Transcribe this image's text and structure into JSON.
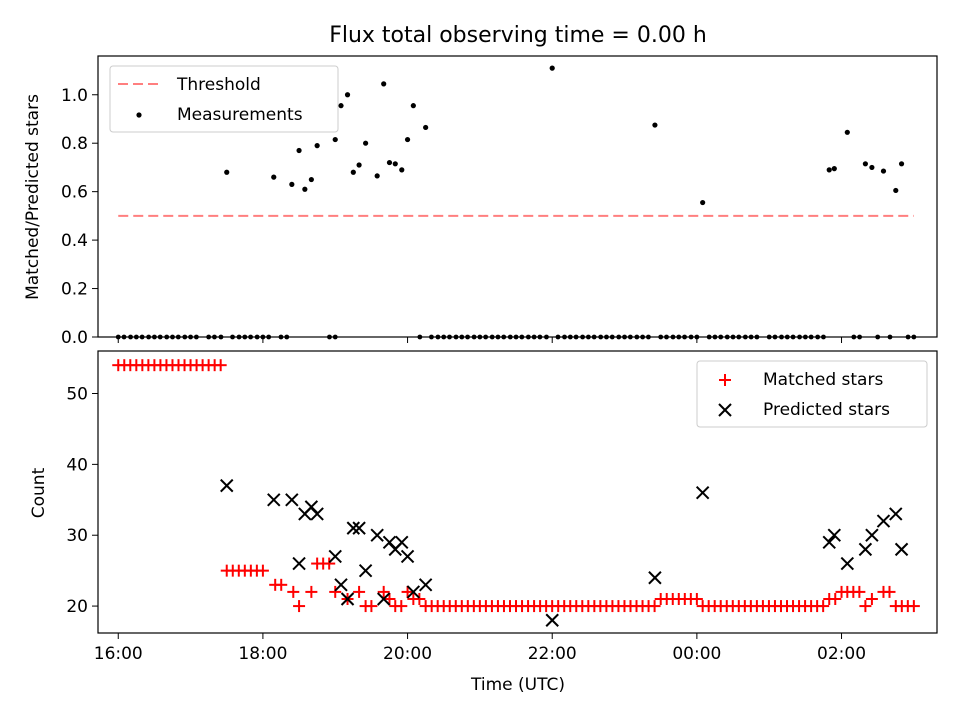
{
  "figure": {
    "title": "Flux total observing time = 0.00 h"
  },
  "chart_data": [
    {
      "type": "scatter",
      "panel": "top",
      "title": "Flux total observing time = 0.00 h",
      "xlabel": "",
      "ylabel": "Matched/Predicted stars",
      "xlim_hours": [
        15.72,
        27.32
      ],
      "ylim": [
        0,
        1.16
      ],
      "grid": false,
      "legend_position": "top-left",
      "x_ticks_hours": [
        16,
        18,
        20,
        22,
        24,
        26
      ],
      "x_tick_labels_shown": false,
      "y_ticks": [
        {
          "v": 0.0,
          "label": "0.0"
        },
        {
          "v": 0.2,
          "label": "0.2"
        },
        {
          "v": 0.4,
          "label": "0.4"
        },
        {
          "v": 0.6,
          "label": "0.6"
        },
        {
          "v": 0.8,
          "label": "0.8"
        },
        {
          "v": 1.0,
          "label": "1.0"
        }
      ],
      "threshold": {
        "name": "Threshold",
        "value": 0.5,
        "x_range_hours": [
          16.0,
          27.0
        ],
        "color": "#ff7f7f",
        "style": "dashed"
      },
      "measurements": {
        "name": "Measurements",
        "color": "#000000",
        "nonzero_points": [
          {
            "x": 17.5,
            "y": 0.68
          },
          {
            "x": 18.15,
            "y": 0.66
          },
          {
            "x": 18.4,
            "y": 0.63
          },
          {
            "x": 18.5,
            "y": 0.77
          },
          {
            "x": 18.58,
            "y": 0.61
          },
          {
            "x": 18.67,
            "y": 0.65
          },
          {
            "x": 18.75,
            "y": 0.79
          },
          {
            "x": 19.0,
            "y": 0.815
          },
          {
            "x": 19.08,
            "y": 0.955
          },
          {
            "x": 19.17,
            "y": 1.0
          },
          {
            "x": 19.25,
            "y": 0.68
          },
          {
            "x": 19.33,
            "y": 0.71
          },
          {
            "x": 19.42,
            "y": 0.8
          },
          {
            "x": 19.58,
            "y": 0.665
          },
          {
            "x": 19.67,
            "y": 1.045
          },
          {
            "x": 19.75,
            "y": 0.72
          },
          {
            "x": 19.83,
            "y": 0.715
          },
          {
            "x": 19.92,
            "y": 0.69
          },
          {
            "x": 20.0,
            "y": 0.815
          },
          {
            "x": 20.08,
            "y": 0.955
          },
          {
            "x": 20.25,
            "y": 0.865
          },
          {
            "x": 22.0,
            "y": 1.11
          },
          {
            "x": 23.42,
            "y": 0.875
          },
          {
            "x": 24.08,
            "y": 0.555
          },
          {
            "x": 25.83,
            "y": 0.69
          },
          {
            "x": 25.9,
            "y": 0.695
          },
          {
            "x": 26.08,
            "y": 0.845
          },
          {
            "x": 26.33,
            "y": 0.715
          },
          {
            "x": 26.42,
            "y": 0.7
          },
          {
            "x": 26.58,
            "y": 0.685
          },
          {
            "x": 26.75,
            "y": 0.605
          },
          {
            "x": 26.83,
            "y": 0.715
          }
        ],
        "zero_points_x": [
          16.0,
          16.08,
          16.17,
          16.25,
          16.33,
          16.42,
          16.5,
          16.58,
          16.67,
          16.75,
          16.83,
          16.92,
          17.0,
          17.08,
          17.25,
          17.33,
          17.42,
          17.58,
          17.67,
          17.75,
          17.83,
          17.92,
          18.0,
          18.08,
          18.25,
          18.33,
          18.92,
          19.0,
          20.17,
          20.33,
          20.42,
          20.5,
          20.58,
          20.67,
          20.75,
          20.83,
          20.92,
          21.0,
          21.08,
          21.17,
          21.25,
          21.33,
          21.42,
          21.5,
          21.58,
          21.67,
          21.75,
          21.83,
          21.92,
          22.08,
          22.17,
          22.25,
          22.33,
          22.42,
          22.5,
          22.58,
          22.67,
          22.75,
          22.83,
          22.92,
          23.0,
          23.08,
          23.17,
          23.25,
          23.33,
          23.5,
          23.58,
          23.67,
          23.75,
          23.83,
          23.92,
          24.0,
          24.17,
          24.25,
          24.33,
          24.42,
          24.5,
          24.58,
          24.67,
          24.75,
          24.83,
          25.0,
          25.08,
          25.17,
          25.25,
          25.33,
          25.42,
          25.5,
          25.58,
          25.67,
          25.75,
          26.17,
          26.25,
          26.5,
          26.67,
          26.92,
          27.0
        ]
      }
    },
    {
      "type": "scatter",
      "panel": "bottom",
      "title": "",
      "xlabel": "Time (UTC)",
      "ylabel": "Count",
      "xlim_hours": [
        15.72,
        27.32
      ],
      "ylim": [
        16.2,
        56.0
      ],
      "grid": false,
      "legend_position": "top-right",
      "x_ticks": [
        {
          "h": 16,
          "label": "16:00"
        },
        {
          "h": 18,
          "label": "18:00"
        },
        {
          "h": 20,
          "label": "20:00"
        },
        {
          "h": 22,
          "label": "22:00"
        },
        {
          "h": 24,
          "label": "00:00"
        },
        {
          "h": 26,
          "label": "02:00"
        }
      ],
      "y_ticks": [
        {
          "v": 20,
          "label": "20"
        },
        {
          "v": 30,
          "label": "30"
        },
        {
          "v": 40,
          "label": "40"
        },
        {
          "v": 50,
          "label": "50"
        }
      ],
      "series": [
        {
          "name": "Matched stars",
          "color": "#ff0000",
          "marker": "plus",
          "step_hours": 0.0833,
          "runs": [
            {
              "start": 16.0,
              "end": 17.42,
              "value": 54
            },
            {
              "start": 17.5,
              "end": 18.08,
              "value": 25
            },
            {
              "start": 18.17,
              "end": 18.33,
              "value": 23
            },
            {
              "start": 18.42,
              "end": 18.42,
              "value": 22
            },
            {
              "start": 18.5,
              "end": 18.58,
              "value": 20
            },
            {
              "start": 18.67,
              "end": 18.67,
              "value": 22
            },
            {
              "start": 18.75,
              "end": 18.92,
              "value": 26
            },
            {
              "start": 19.0,
              "end": 19.08,
              "value": 22
            },
            {
              "start": 19.17,
              "end": 19.25,
              "value": 21
            },
            {
              "start": 19.33,
              "end": 19.33,
              "value": 22
            },
            {
              "start": 19.42,
              "end": 19.42,
              "value": 20
            },
            {
              "start": 19.5,
              "end": 19.58,
              "value": 20
            },
            {
              "start": 19.67,
              "end": 19.67,
              "value": 22
            },
            {
              "start": 19.75,
              "end": 19.75,
              "value": 21
            },
            {
              "start": 19.83,
              "end": 19.92,
              "value": 20
            },
            {
              "start": 20.0,
              "end": 20.0,
              "value": 22
            },
            {
              "start": 20.08,
              "end": 20.17,
              "value": 21
            },
            {
              "start": 20.25,
              "end": 23.42,
              "value": 20
            },
            {
              "start": 23.5,
              "end": 24.0,
              "value": 21
            },
            {
              "start": 24.08,
              "end": 25.75,
              "value": 20
            },
            {
              "start": 25.83,
              "end": 25.92,
              "value": 21
            },
            {
              "start": 26.0,
              "end": 26.0,
              "value": 22
            },
            {
              "start": 26.08,
              "end": 26.25,
              "value": 22
            },
            {
              "start": 26.33,
              "end": 26.33,
              "value": 20
            },
            {
              "start": 26.42,
              "end": 26.5,
              "value": 21
            },
            {
              "start": 26.58,
              "end": 26.67,
              "value": 22
            },
            {
              "start": 26.75,
              "end": 27.0,
              "value": 20
            }
          ]
        },
        {
          "name": "Predicted stars",
          "color": "#000000",
          "marker": "x",
          "points": [
            {
              "x": 17.5,
              "y": 37
            },
            {
              "x": 18.15,
              "y": 35
            },
            {
              "x": 18.4,
              "y": 35
            },
            {
              "x": 18.5,
              "y": 26
            },
            {
              "x": 18.58,
              "y": 33
            },
            {
              "x": 18.67,
              "y": 34
            },
            {
              "x": 18.75,
              "y": 33
            },
            {
              "x": 19.0,
              "y": 27
            },
            {
              "x": 19.08,
              "y": 23
            },
            {
              "x": 19.17,
              "y": 21
            },
            {
              "x": 19.25,
              "y": 31
            },
            {
              "x": 19.33,
              "y": 31
            },
            {
              "x": 19.42,
              "y": 25
            },
            {
              "x": 19.58,
              "y": 30
            },
            {
              "x": 19.67,
              "y": 21
            },
            {
              "x": 19.75,
              "y": 29
            },
            {
              "x": 19.83,
              "y": 28
            },
            {
              "x": 19.92,
              "y": 29
            },
            {
              "x": 20.0,
              "y": 27
            },
            {
              "x": 20.08,
              "y": 22
            },
            {
              "x": 20.25,
              "y": 23
            },
            {
              "x": 22.0,
              "y": 18
            },
            {
              "x": 23.42,
              "y": 24
            },
            {
              "x": 24.08,
              "y": 36
            },
            {
              "x": 25.83,
              "y": 29
            },
            {
              "x": 25.9,
              "y": 30
            },
            {
              "x": 26.08,
              "y": 26
            },
            {
              "x": 26.33,
              "y": 28
            },
            {
              "x": 26.42,
              "y": 30
            },
            {
              "x": 26.58,
              "y": 32
            },
            {
              "x": 26.75,
              "y": 33
            },
            {
              "x": 26.83,
              "y": 28
            }
          ]
        }
      ]
    }
  ]
}
